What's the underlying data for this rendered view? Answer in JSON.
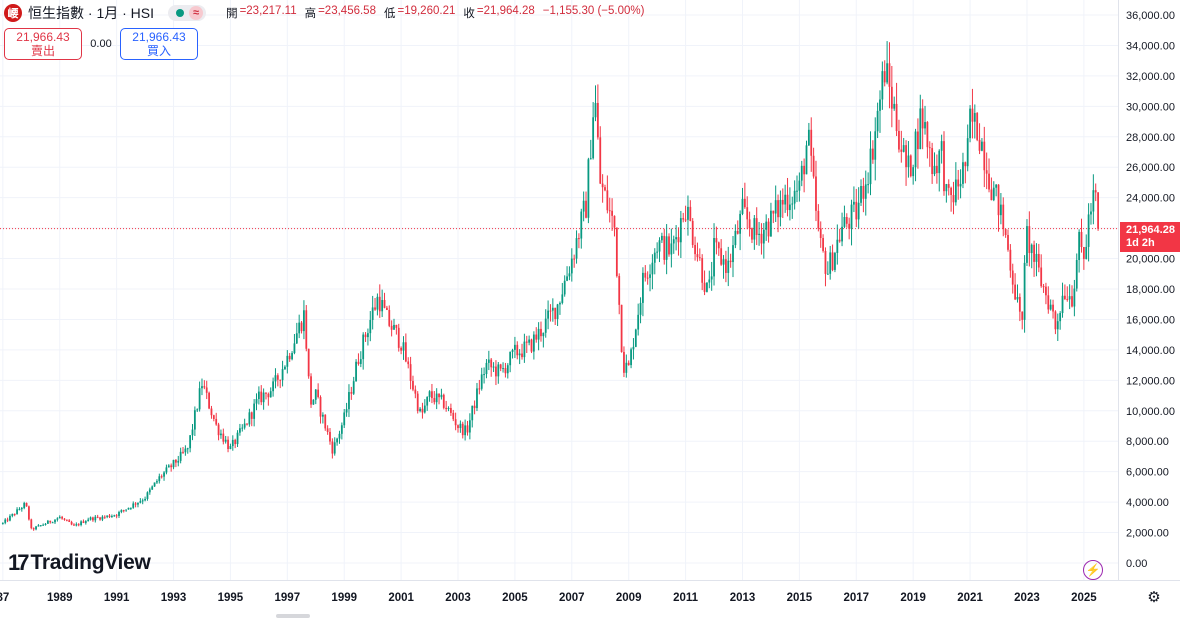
{
  "header": {
    "logo_letter": "崾",
    "title": "恒生指數 · 1月 · HSI",
    "wave_icon": "≈",
    "open_label": "開",
    "open": "=23,217.11",
    "high_label": "高",
    "high": "=23,456.58",
    "low_label": "低",
    "low": "=19,260.21",
    "close_label": "收",
    "close": "=21,964.28",
    "change": "−1,155.30 (−5.00%)"
  },
  "trade": {
    "sell_price": "21,966.43",
    "sell_label": "賣出",
    "spread": "0.00",
    "buy_price": "21,966.43",
    "buy_label": "買入"
  },
  "price_tag": {
    "price": "21,964.28",
    "countdown": "1d 2h"
  },
  "brand": "TradingView",
  "icons": [
    "logo-icon",
    "market-status-icon",
    "wave-icon",
    "tradingview-logo-icon",
    "lightning-icon",
    "settings-icon"
  ],
  "colors": {
    "up": "#089981",
    "down": "#f23645",
    "sell": "#e03546",
    "buy": "#2962ff",
    "last_price_line": "#f23645"
  },
  "chart_data": {
    "type": "candlestick",
    "title": "恒生指數 · 1月 · HSI",
    "interval": "1 month",
    "x_ticks": [
      "87",
      "1989",
      "1991",
      "1993",
      "1995",
      "1997",
      "1999",
      "2001",
      "2003",
      "2005",
      "2007",
      "2009",
      "2011",
      "2013",
      "2015",
      "2017",
      "2019",
      "2021",
      "2023",
      "2025"
    ],
    "y_ticks": [
      "0.00",
      "2,000.00",
      "4,000.00",
      "6,000.00",
      "8,000.00",
      "10,000.00",
      "12,000.00",
      "14,000.00",
      "16,000.00",
      "18,000.00",
      "20,000.00",
      "22,000.00",
      "24,000.00",
      "26,000.00",
      "28,000.00",
      "30,000.00",
      "32,000.00",
      "34,000.00",
      "36,000.00"
    ],
    "ylim": [
      0,
      36000
    ],
    "xlim": [
      1986.9,
      2026.2
    ],
    "last_price": 21964.28,
    "grid": true,
    "series_approx_monthly_close": [
      [
        "1987.0",
        2600
      ],
      [
        "1987.8",
        3900
      ],
      [
        "1988.0",
        2200
      ],
      [
        "1989.0",
        3000
      ],
      [
        "1989.5",
        2400
      ],
      [
        "1990.0",
        2900
      ],
      [
        "1990.5",
        3000
      ],
      [
        "1991.0",
        3200
      ],
      [
        "1992.0",
        4300
      ],
      [
        "1992.5",
        5600
      ],
      [
        "1993.0",
        6500
      ],
      [
        "1993.5",
        7500
      ],
      [
        "1994.0",
        11800
      ],
      [
        "1994.5",
        9000
      ],
      [
        "1995.0",
        7500
      ],
      [
        "1995.5",
        9000
      ],
      [
        "1996.0",
        10800
      ],
      [
        "1996.5",
        11500
      ],
      [
        "1997.0",
        13500
      ],
      [
        "1997.6",
        16400
      ],
      [
        "1997.8",
        10500
      ],
      [
        "1998.0",
        11000
      ],
      [
        "1998.6",
        7400
      ],
      [
        "1999.0",
        9500
      ],
      [
        "1999.5",
        13500
      ],
      [
        "2000.0",
        16500
      ],
      [
        "2000.2",
        17500
      ],
      [
        "2000.5",
        16000
      ],
      [
        "2001.0",
        14500
      ],
      [
        "2001.7",
        9600
      ],
      [
        "2002.0",
        11000
      ],
      [
        "2002.5",
        10500
      ],
      [
        "2003.0",
        9000
      ],
      [
        "2003.3",
        8600
      ],
      [
        "2003.8",
        12000
      ],
      [
        "2004.0",
        13000
      ],
      [
        "2004.5",
        12500
      ],
      [
        "2005.0",
        13800
      ],
      [
        "2005.5",
        14200
      ],
      [
        "2006.0",
        15500
      ],
      [
        "2006.5",
        17000
      ],
      [
        "2007.0",
        20000
      ],
      [
        "2007.5",
        23500
      ],
      [
        "2007.8",
        31000
      ],
      [
        "2008.0",
        25000
      ],
      [
        "2008.5",
        22000
      ],
      [
        "2008.8",
        13000
      ],
      [
        "2009.0",
        12800
      ],
      [
        "2009.5",
        18500
      ],
      [
        "2010.0",
        21000
      ],
      [
        "2010.5",
        20500
      ],
      [
        "2011.0",
        23500
      ],
      [
        "2011.8",
        17500
      ],
      [
        "2012.0",
        20500
      ],
      [
        "2012.5",
        19500
      ],
      [
        "2013.0",
        23000
      ],
      [
        "2013.5",
        21500
      ],
      [
        "2014.0",
        22500
      ],
      [
        "2014.5",
        24000
      ],
      [
        "2015.0",
        24500
      ],
      [
        "2015.3",
        28000
      ],
      [
        "2015.7",
        21000
      ],
      [
        "2016.0",
        19200
      ],
      [
        "2016.5",
        22000
      ],
      [
        "2017.0",
        23000
      ],
      [
        "2017.5",
        26500
      ],
      [
        "2018.0",
        32500
      ],
      [
        "2018.3",
        30000
      ],
      [
        "2018.8",
        25500
      ],
      [
        "2019.0",
        27000
      ],
      [
        "2019.3",
        29500
      ],
      [
        "2019.7",
        26000
      ],
      [
        "2020.0",
        27000
      ],
      [
        "2020.2",
        23500
      ],
      [
        "2020.5",
        24500
      ],
      [
        "2020.9",
        26500
      ],
      [
        "2021.0",
        29000
      ],
      [
        "2021.3",
        28500
      ],
      [
        "2021.8",
        24500
      ],
      [
        "2022.0",
        23500
      ],
      [
        "2022.3",
        21000
      ],
      [
        "2022.8",
        15500
      ],
      [
        "2023.0",
        21500
      ],
      [
        "2023.5",
        18500
      ],
      [
        "2023.9",
        16500
      ],
      [
        "2024.0",
        15500
      ],
      [
        "2024.3",
        18000
      ],
      [
        "2024.6",
        17500
      ],
      [
        "2024.8",
        21000
      ],
      [
        "2025.0",
        20000
      ],
      [
        "2025.2",
        23000
      ],
      [
        "2025.4",
        24200
      ],
      [
        "2025.5",
        21964.28
      ]
    ]
  }
}
